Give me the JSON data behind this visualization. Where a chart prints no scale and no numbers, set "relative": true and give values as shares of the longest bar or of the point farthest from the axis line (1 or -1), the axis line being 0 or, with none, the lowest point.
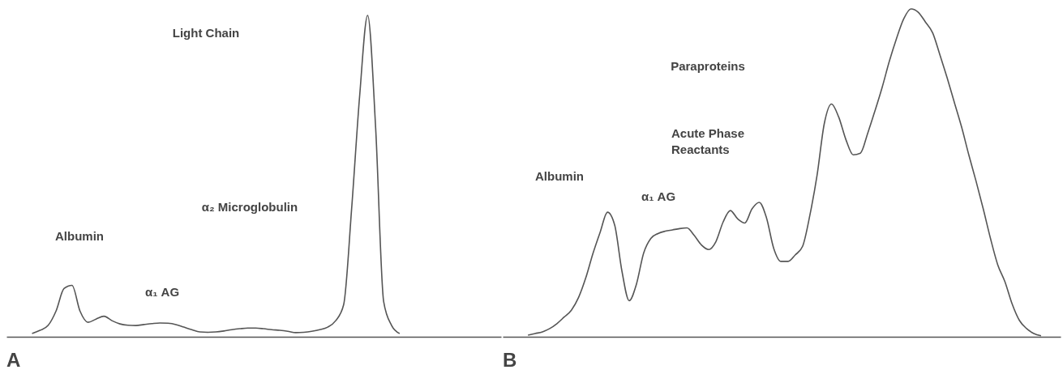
{
  "chart_data": [
    {
      "type": "line",
      "title": "A",
      "relative": true,
      "marker": "none",
      "line_style": "solid",
      "categories": [
        null,
        null,
        null,
        null,
        null,
        null,
        null,
        null,
        null,
        null,
        null,
        null,
        null,
        null,
        null,
        null,
        null,
        null,
        null,
        null,
        null,
        null,
        null,
        null,
        null,
        null,
        null,
        null,
        null,
        null,
        null,
        null,
        null,
        null,
        null,
        null,
        null,
        null,
        null,
        null,
        null,
        null,
        null,
        null,
        null,
        null,
        null
      ],
      "series": [
        {
          "color": "#555555",
          "values": [
            0.01,
            0.02,
            0.035,
            0.08,
            0.15,
            0.16,
            0.08,
            0.045,
            0.055,
            0.064,
            0.05,
            0.04,
            0.036,
            0.035,
            0.038,
            0.041,
            0.043,
            0.042,
            0.038,
            0.03,
            0.022,
            0.015,
            0.014,
            0.015,
            0.018,
            0.022,
            0.025,
            0.027,
            0.027,
            0.025,
            0.022,
            0.02,
            0.017,
            0.013,
            0.014,
            0.017,
            0.022,
            0.03,
            0.05,
            0.1,
            0.4,
            0.75,
            1.0,
            0.65,
            0.11,
            0.035,
            0.01
          ]
        }
      ],
      "annotations": [
        "Light Chain",
        "Albumin",
        "α₁ AG",
        "α₂ Microglobulin"
      ]
    },
    {
      "type": "line",
      "title": "B",
      "relative": true,
      "marker": "none",
      "line_style": "solid",
      "categories": [
        null,
        null,
        null,
        null,
        null,
        null,
        null,
        null,
        null,
        null,
        null,
        null,
        null,
        null,
        null,
        null,
        null,
        null,
        null,
        null,
        null,
        null,
        null,
        null,
        null,
        null,
        null,
        null,
        null,
        null,
        null,
        null,
        null,
        null,
        null,
        null,
        null,
        null,
        null,
        null,
        null,
        null,
        null,
        null,
        null,
        null,
        null,
        null,
        null,
        null,
        null,
        null,
        null,
        null,
        null,
        null,
        null,
        null,
        null,
        null,
        null,
        null,
        null,
        null,
        null,
        null,
        null,
        null,
        null,
        null,
        null,
        null
      ],
      "series": [
        {
          "color": "#555555",
          "values": [
            0.005,
            0.01,
            0.015,
            0.025,
            0.04,
            0.06,
            0.081,
            0.12,
            0.18,
            0.255,
            0.32,
            0.38,
            0.34,
            0.2,
            0.11,
            0.16,
            0.255,
            0.3,
            0.315,
            0.322,
            0.326,
            0.33,
            0.332,
            0.309,
            0.28,
            0.266,
            0.29,
            0.35,
            0.385,
            0.36,
            0.347,
            0.39,
            0.41,
            0.363,
            0.27,
            0.23,
            0.23,
            0.25,
            0.276,
            0.37,
            0.492,
            0.65,
            0.71,
            0.67,
            0.601,
            0.555,
            0.56,
            0.62,
            0.688,
            0.76,
            0.84,
            0.91,
            0.97,
            1.0,
            0.99,
            0.96,
            0.927,
            0.86,
            0.79,
            0.715,
            0.64,
            0.555,
            0.475,
            0.39,
            0.3,
            0.22,
            0.168,
            0.1,
            0.05,
            0.025,
            0.01,
            0.003
          ]
        }
      ],
      "annotations": [
        "Paraproteins",
        "Acute Phase\nReactants",
        "Albumin",
        "α₁ AG"
      ]
    }
  ]
}
